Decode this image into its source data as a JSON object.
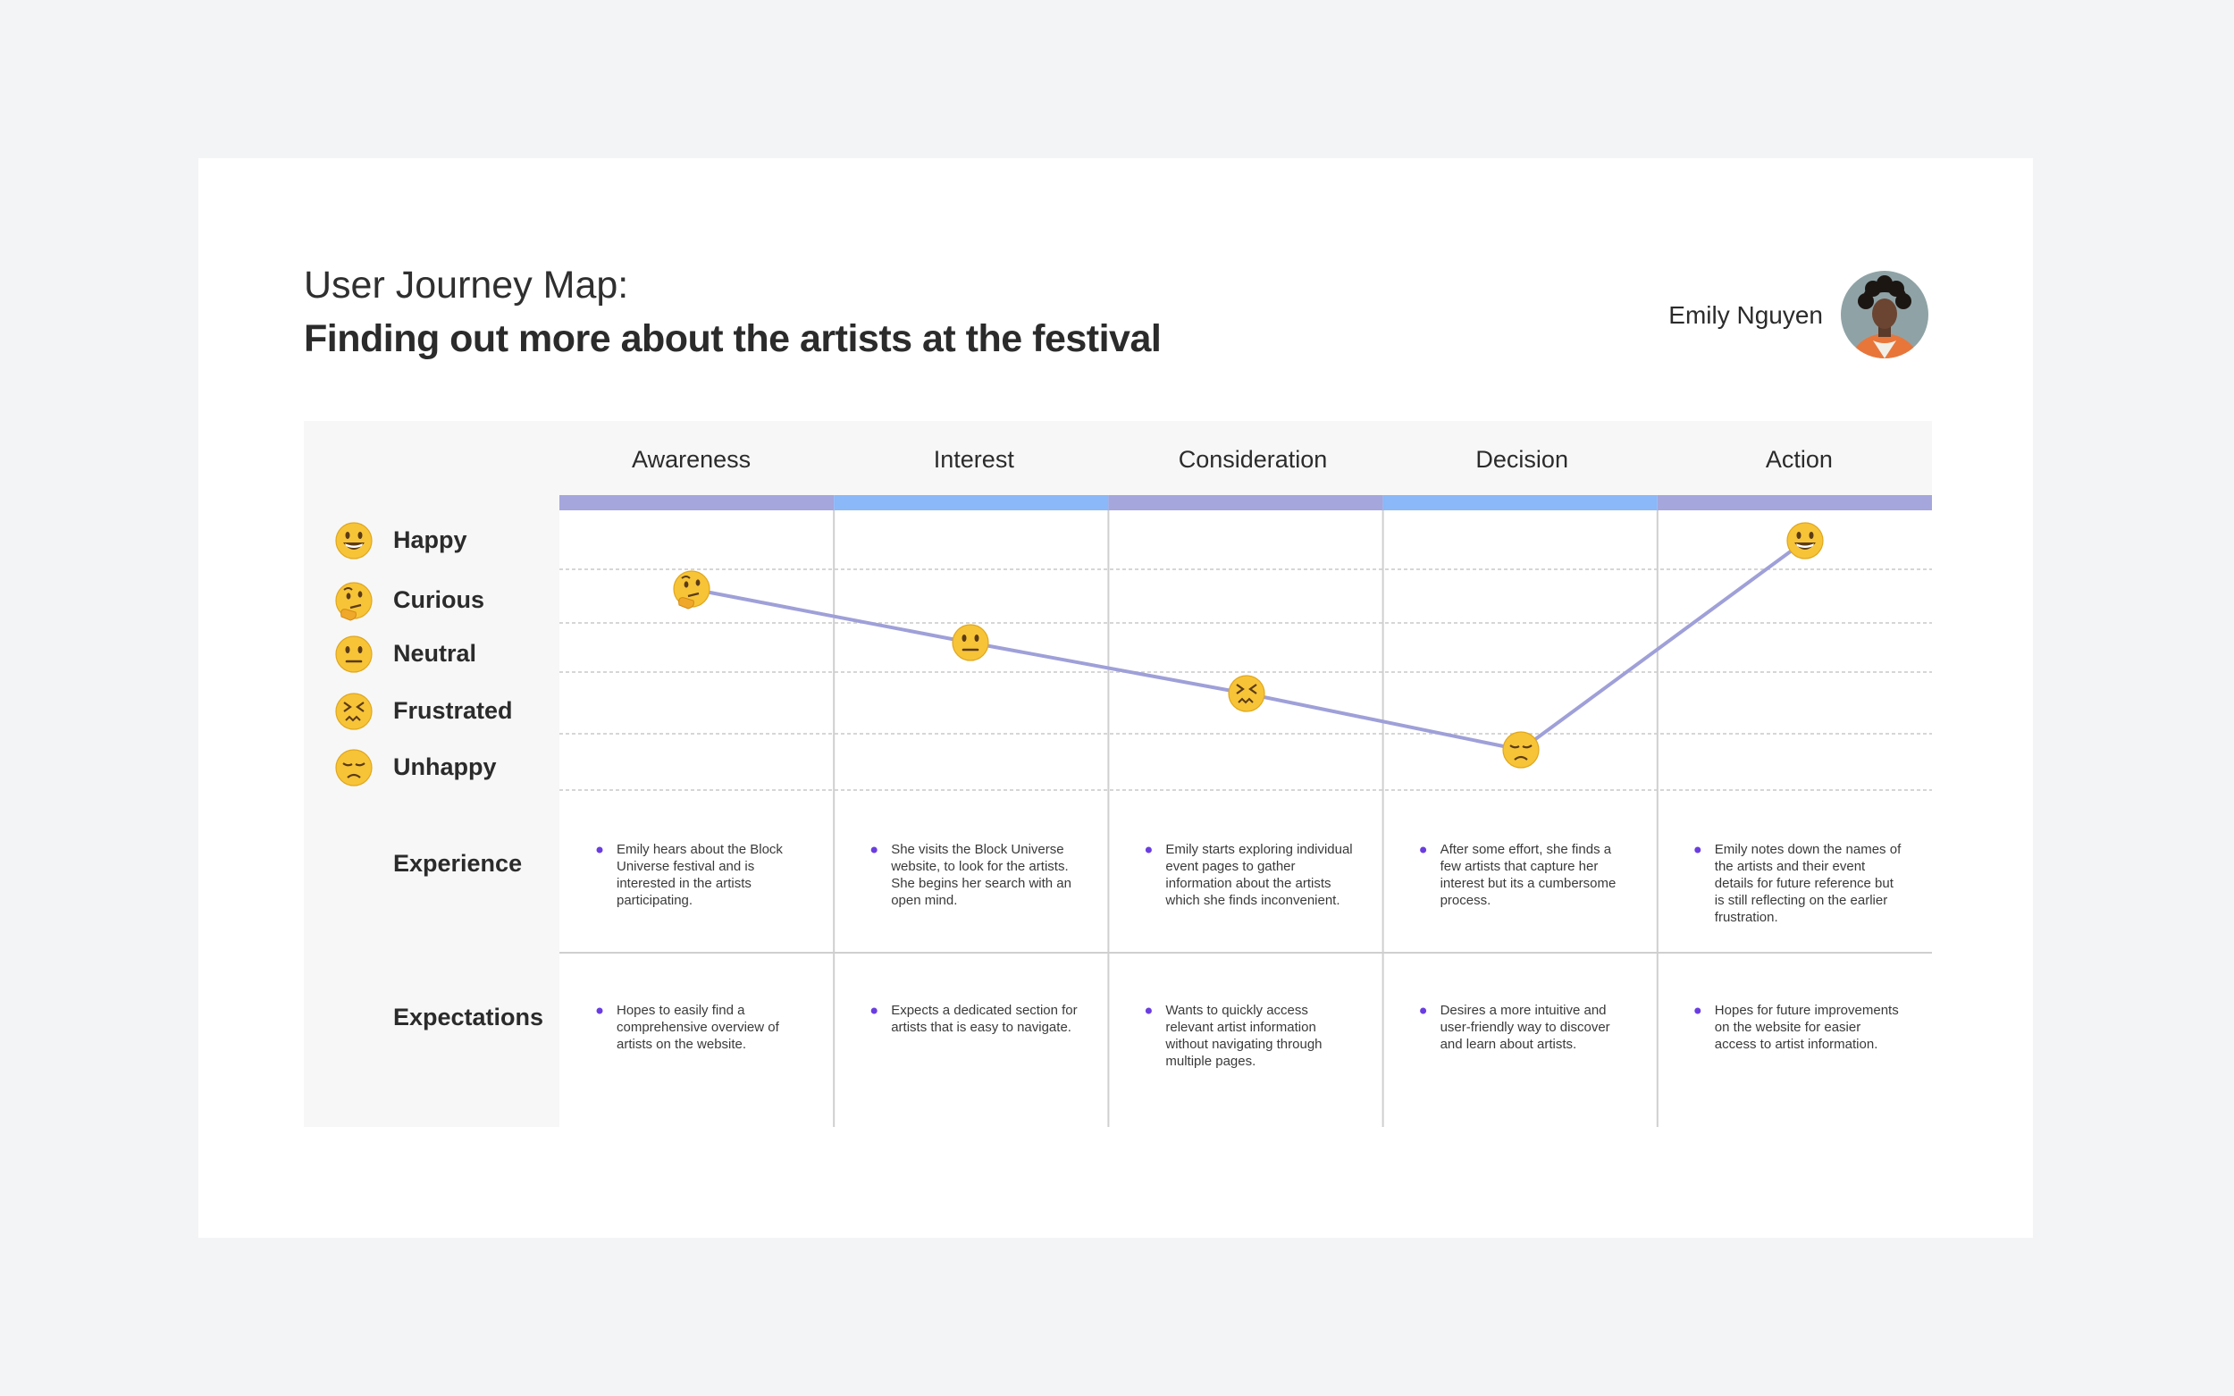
{
  "header": {
    "title_small": "User Journey Map:",
    "title_main": "Finding out more about the artists at the festival",
    "persona_name": "Emily Nguyen",
    "avatar_icon": "persona-avatar-photo"
  },
  "colors": {
    "stage_bar_a": "#a5a6dc",
    "stage_bar_b": "#8ab8f8",
    "journey_line": "#9fa0d8",
    "bullet": "#6a3de0",
    "panel_bg": "#f7f7f7",
    "emoji_face": "#f7c438"
  },
  "emotions": [
    {
      "label": "Happy",
      "icon": "grinning-face-icon"
    },
    {
      "label": "Curious",
      "icon": "thinking-face-icon"
    },
    {
      "label": "Neutral",
      "icon": "neutral-face-icon"
    },
    {
      "label": "Frustrated",
      "icon": "confounded-face-icon"
    },
    {
      "label": "Unhappy",
      "icon": "disappointed-face-icon"
    }
  ],
  "stages": [
    {
      "name": "Awareness",
      "emotion": "Curious",
      "experience": "Emily hears about the Block Universe festival and is interested in the artists participating.",
      "expectation": "Hopes to easily find a comprehensive overview of artists on the website."
    },
    {
      "name": "Interest",
      "emotion": "Neutral",
      "experience": "She visits the Block Universe website, to look for the artists. She begins her search with an open mind.",
      "expectation": "Expects a dedicated section for artists that is easy to navigate."
    },
    {
      "name": "Consideration",
      "emotion": "Frustrated",
      "experience": "Emily starts exploring individual event pages to gather information about the artists which she finds inconvenient.",
      "expectation": "Wants to quickly access relevant artist information without navigating through multiple pages."
    },
    {
      "name": "Decision",
      "emotion": "Unhappy",
      "experience": "After some effort, she finds a few artists that capture her interest but its a cumbersome process.",
      "expectation": "Desires a more intuitive and user-friendly way to discover and learn about artists."
    },
    {
      "name": "Action",
      "emotion": "Happy",
      "experience": "Emily notes down the names of the artists and their event details for future reference but is still reflecting on the earlier frustration.",
      "expectation": "Hopes for future improvements on the website for easier access to artist information."
    }
  ],
  "rows": {
    "experience_label": "Experience",
    "expectations_label": "Expectations"
  }
}
